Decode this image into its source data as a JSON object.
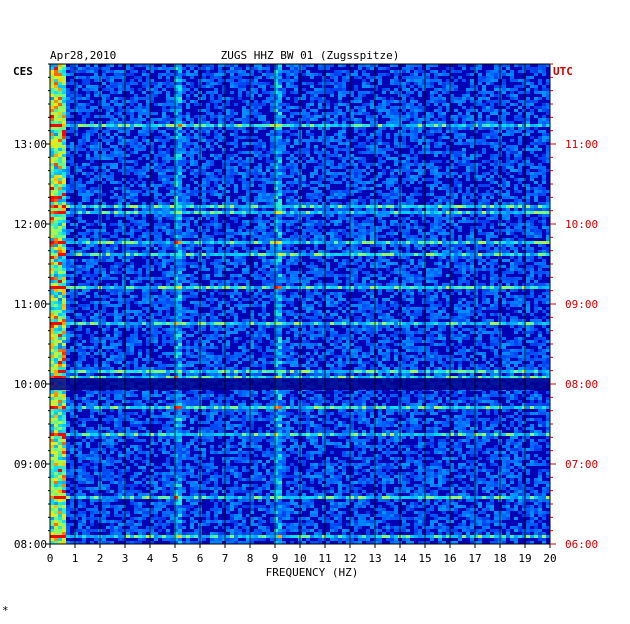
{
  "chart_data": {
    "type": "heatmap",
    "date": "Apr28,2010",
    "title": "ZUGS HHZ BW 01 (Zugsspitze)",
    "left_tz": "CES",
    "right_tz": "UTC",
    "xlabel": "FREQUENCY (HZ)",
    "xlim": [
      0,
      20
    ],
    "x_ticks": [
      "0",
      "1",
      "2",
      "3",
      "4",
      "5",
      "6",
      "7",
      "8",
      "9",
      "10",
      "11",
      "12",
      "13",
      "14",
      "15",
      "16",
      "17",
      "18",
      "19",
      "20"
    ],
    "y_ticks_left": [
      "13:00",
      "12:00",
      "11:00",
      "10:00",
      "09:00",
      "08:00"
    ],
    "y_ticks_right": [
      "11:00",
      "10:00",
      "09:00",
      "08:00",
      "07:00",
      "06:00"
    ],
    "colors": {
      "axis_right": "#cc0000",
      "background_low": "#0000b4",
      "high": "#ff0000"
    }
  },
  "footer_mark": "*"
}
